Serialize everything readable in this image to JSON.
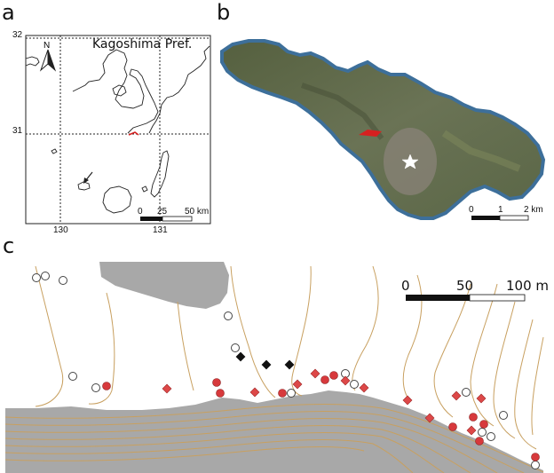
{
  "panels": {
    "a": "a",
    "b": "b",
    "c": "c"
  },
  "panel_a": {
    "title": "Kagoshima Pref.",
    "lat_labels": [
      "32",
      "31"
    ],
    "lon_labels": [
      "130",
      "131"
    ],
    "scale_labels": [
      "0",
      "25",
      "50 km"
    ],
    "north_arrow_icon": "north-arrow-icon",
    "pointer_icon": "arrow-pointer-icon"
  },
  "panel_b": {
    "scale_labels": [
      "0",
      "1",
      "2 km"
    ],
    "star_icon": "star-icon",
    "colors": {
      "land": "#5f6b4d",
      "coast": "#3d6f9a",
      "highlight": "#d62020"
    }
  },
  "panel_c": {
    "scale_labels": [
      "0",
      "50",
      "100 m"
    ],
    "colors": {
      "contour": "#c8a060",
      "shade": "#a8a8a8",
      "red": "#d7393c",
      "diamond_red": "#dd4848"
    },
    "legend_note": ""
  }
}
